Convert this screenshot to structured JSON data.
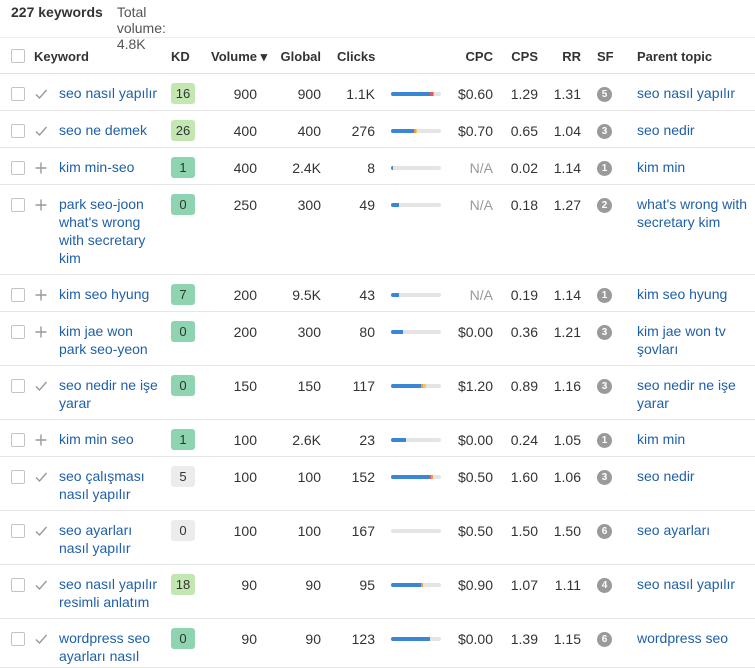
{
  "summary": {
    "count": "227 keywords",
    "volume": "Total volume: 4.8K"
  },
  "headers": {
    "keyword": "Keyword",
    "kd": "KD",
    "volume": "Volume ▾",
    "global": "Global",
    "clicks": "Clicks",
    "cpc": "CPC",
    "cps": "CPS",
    "rr": "RR",
    "sf": "SF",
    "parent": "Parent topic"
  },
  "colors": {
    "kd_green": "#8fd4b0",
    "kd_lightgreen": "#c2e7b0",
    "kd_gray": "#ececec",
    "link": "#1f5fa8",
    "bar_blue": "#3a86d4",
    "bar_orange": "#f29a4a",
    "bar_red": "#e45a5a",
    "bar_yellow": "#f2c94c"
  },
  "rows": [
    {
      "action": "check",
      "keyword": "seo nasıl yapılır",
      "kd": "16",
      "kd_color": "lightgreen",
      "volume": "900",
      "global": "900",
      "clicks": "1.1K",
      "bar": [
        0.78,
        0.05,
        0.03,
        0
      ],
      "cpc": "$0.60",
      "cps": "1.29",
      "rr": "1.31",
      "sf": "5",
      "parent": "seo nasıl yapılır"
    },
    {
      "action": "check",
      "keyword": "seo ne demek",
      "kd": "26",
      "kd_color": "lightgreen",
      "volume": "400",
      "global": "400",
      "clicks": "276",
      "bar": [
        0.45,
        0,
        0.04,
        0.02
      ],
      "cpc": "$0.70",
      "cps": "0.65",
      "rr": "1.04",
      "sf": "3",
      "parent": "seo nedir"
    },
    {
      "action": "plus",
      "keyword": "kim min-seo",
      "kd": "1",
      "kd_color": "green",
      "volume": "400",
      "global": "2.4K",
      "clicks": "8",
      "bar": [
        0.03,
        0,
        0,
        0
      ],
      "cpc": "N/A",
      "cps": "0.02",
      "rr": "1.14",
      "sf": "1",
      "parent": "kim min"
    },
    {
      "action": "plus",
      "keyword": "park seo-joon what's wrong with secretary kim",
      "kd": "0",
      "kd_color": "green",
      "volume": "250",
      "global": "300",
      "clicks": "49",
      "bar": [
        0.16,
        0,
        0,
        0
      ],
      "cpc": "N/A",
      "cps": "0.18",
      "rr": "1.27",
      "sf": "2",
      "parent": "what's wrong with secretary kim"
    },
    {
      "action": "plus",
      "keyword": "kim seo hyung",
      "kd": "7",
      "kd_color": "green",
      "volume": "200",
      "global": "9.5K",
      "clicks": "43",
      "bar": [
        0.16,
        0,
        0,
        0
      ],
      "cpc": "N/A",
      "cps": "0.19",
      "rr": "1.14",
      "sf": "1",
      "parent": "kim seo hyung"
    },
    {
      "action": "plus",
      "keyword": "kim jae won park seo-yeon",
      "kd": "0",
      "kd_color": "green",
      "volume": "200",
      "global": "300",
      "clicks": "80",
      "bar": [
        0.24,
        0,
        0,
        0
      ],
      "cpc": "$0.00",
      "cps": "0.36",
      "rr": "1.21",
      "sf": "3",
      "parent": "kim jae won tv şovları"
    },
    {
      "action": "check",
      "keyword": "seo nedir ne işe yarar",
      "kd": "0",
      "kd_color": "green",
      "volume": "150",
      "global": "150",
      "clicks": "117",
      "bar": [
        0.6,
        0,
        0.03,
        0.06
      ],
      "cpc": "$1.20",
      "cps": "0.89",
      "rr": "1.16",
      "sf": "3",
      "parent": "seo nedir ne işe yarar"
    },
    {
      "action": "plus",
      "keyword": "kim min seo",
      "kd": "1",
      "kd_color": "green",
      "volume": "100",
      "global": "2.6K",
      "clicks": "23",
      "bar": [
        0.3,
        0,
        0,
        0
      ],
      "cpc": "$0.00",
      "cps": "0.24",
      "rr": "1.05",
      "sf": "1",
      "parent": "kim min"
    },
    {
      "action": "check",
      "keyword": "seo çalışması nasıl yapılır",
      "kd": "5",
      "kd_color": "gray",
      "volume": "100",
      "global": "100",
      "clicks": "152",
      "bar": [
        0.76,
        0.04,
        0.04,
        0
      ],
      "cpc": "$0.50",
      "cps": "1.60",
      "rr": "1.06",
      "sf": "3",
      "parent": "seo nedir"
    },
    {
      "action": "check",
      "keyword": "seo ayarları nasıl yapılır",
      "kd": "0",
      "kd_color": "gray",
      "volume": "100",
      "global": "100",
      "clicks": "167",
      "bar": [
        0,
        0,
        0,
        0
      ],
      "cpc": "$0.50",
      "cps": "1.50",
      "rr": "1.50",
      "sf": "6",
      "parent": "seo ayarları"
    },
    {
      "action": "check",
      "keyword": "seo nasıl yapılır resimli anlatım",
      "kd": "18",
      "kd_color": "lightgreen",
      "volume": "90",
      "global": "90",
      "clicks": "95",
      "bar": [
        0.6,
        0,
        0.04,
        0
      ],
      "cpc": "$0.90",
      "cps": "1.07",
      "rr": "1.11",
      "sf": "4",
      "parent": "seo nasıl yapılır"
    },
    {
      "action": "check",
      "keyword": "wordpress seo ayarları nasıl",
      "kd": "0",
      "kd_color": "green",
      "volume": "90",
      "global": "90",
      "clicks": "123",
      "bar": [
        0.78,
        0,
        0,
        0
      ],
      "cpc": "$0.00",
      "cps": "1.39",
      "rr": "1.15",
      "sf": "6",
      "parent": "wordpress seo"
    }
  ]
}
